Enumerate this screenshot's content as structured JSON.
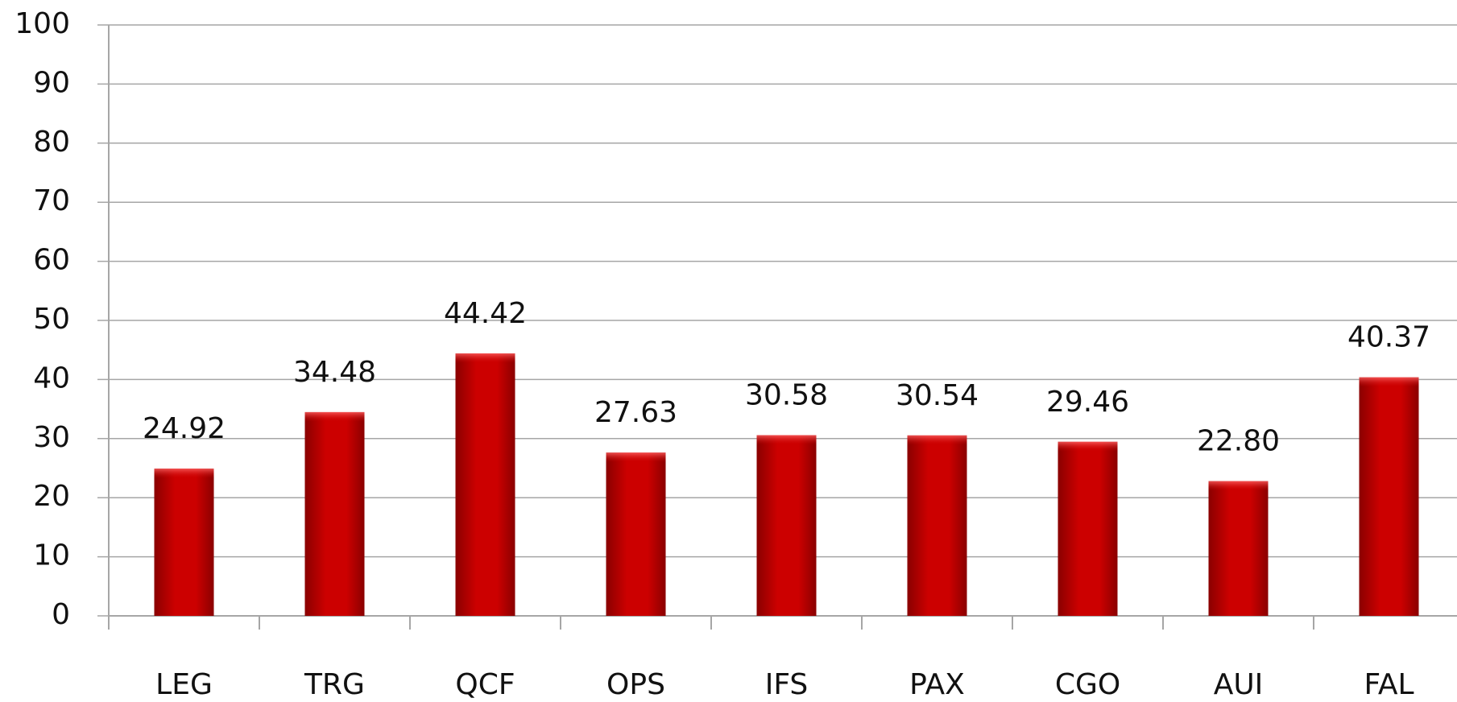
{
  "chart_data": {
    "type": "bar",
    "categories": [
      "LEG",
      "TRG",
      "QCF",
      "OPS",
      "IFS",
      "PAX",
      "CGO",
      "AUI",
      "FAL"
    ],
    "values": [
      24.92,
      34.48,
      44.42,
      27.63,
      30.58,
      30.54,
      29.46,
      22.8,
      40.37
    ],
    "value_labels": [
      "24.92",
      "34.48",
      "44.42",
      "27.63",
      "30.58",
      "30.54",
      "29.46",
      "22.80",
      "40.37"
    ],
    "color": "#cc0000",
    "ylim": [
      0,
      100
    ],
    "yticks": [
      0,
      10,
      20,
      30,
      40,
      50,
      60,
      70,
      80,
      90,
      100
    ],
    "grid": true
  }
}
